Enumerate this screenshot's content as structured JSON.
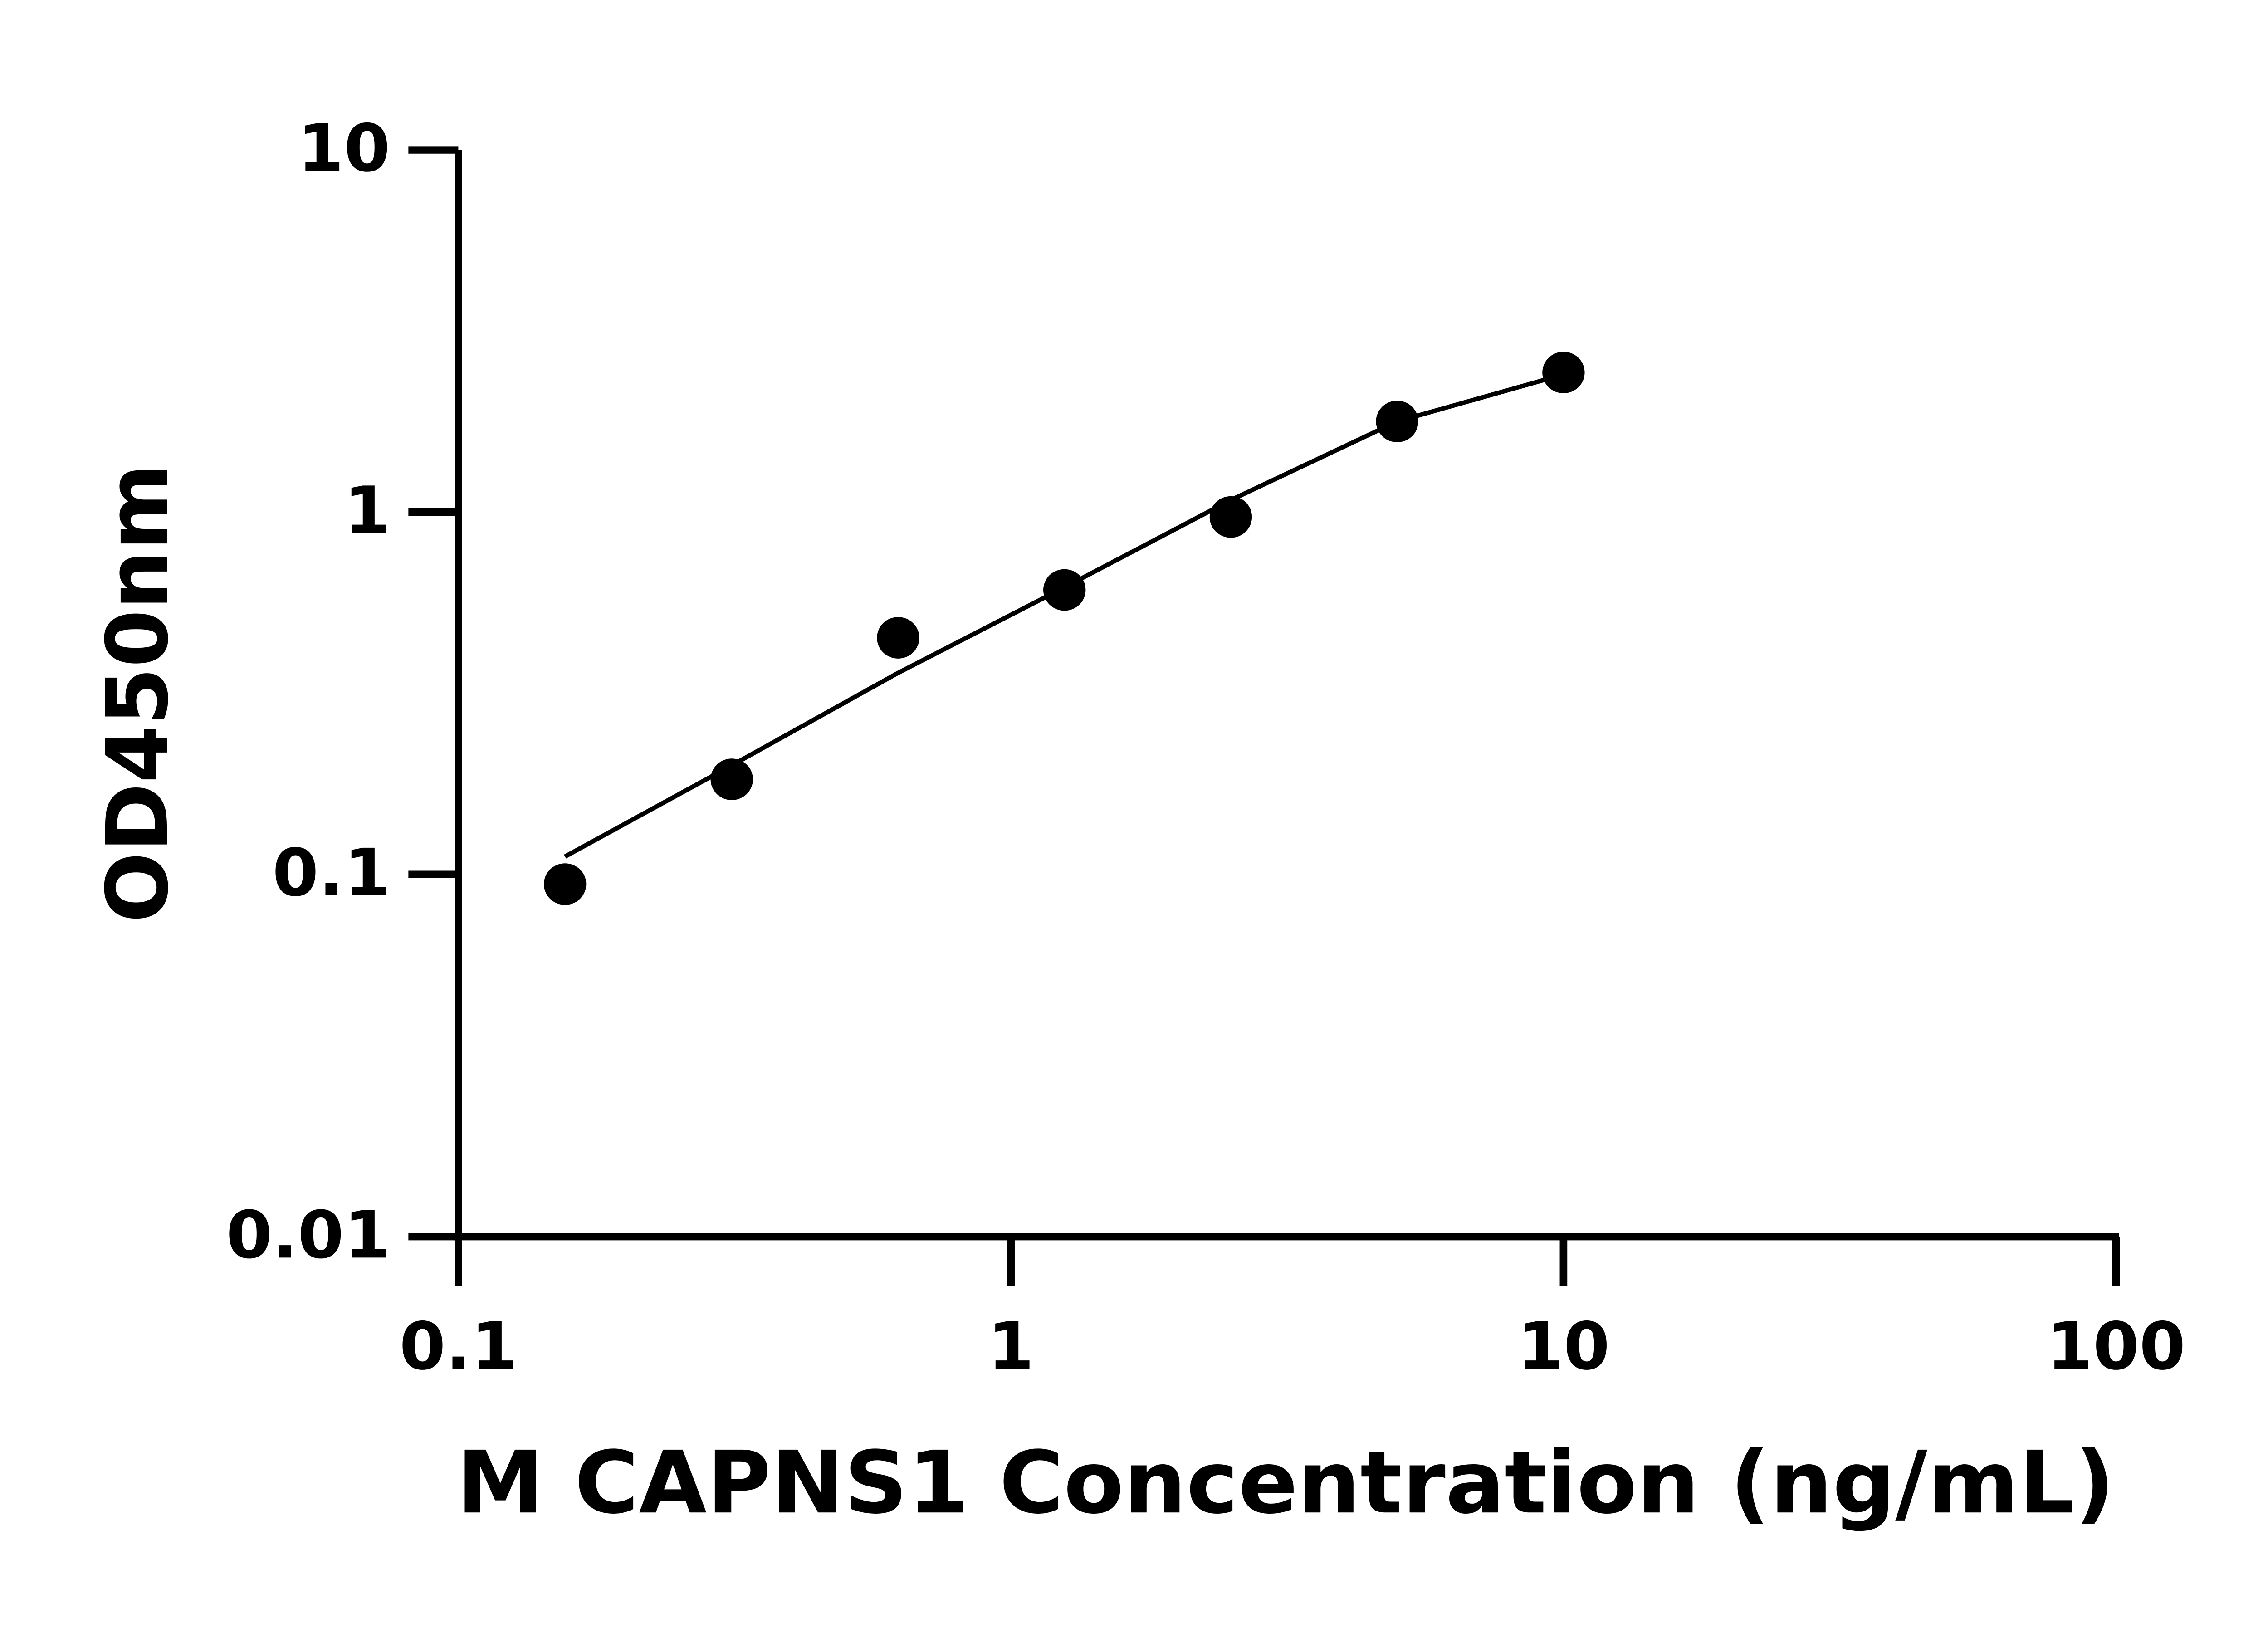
{
  "chart_data": {
    "type": "scatter",
    "x_label": "M CAPNS1 Concentration (ng/mL)",
    "y_label": "OD450nm",
    "x": [
      0.156,
      0.3125,
      0.625,
      1.25,
      2.5,
      5,
      10
    ],
    "series": [
      {
        "mode": "markers",
        "color": "#000000",
        "values": [
          0.094,
          0.183,
          0.45,
          0.61,
          0.97,
          1.78,
          2.43
        ]
      },
      {
        "mode": "line",
        "color": "#000000",
        "values": [
          0.112,
          0.2,
          0.36,
          0.62,
          1.08,
          1.78,
          2.4
        ]
      }
    ],
    "xlim": [
      0.1,
      100
    ],
    "ylim": [
      0.01,
      10
    ],
    "xticks": [
      0.1,
      1,
      10,
      100
    ],
    "yticks": [
      0.01,
      0.1,
      1,
      10
    ],
    "xscale": "log",
    "yscale": "log",
    "grid": false
  }
}
